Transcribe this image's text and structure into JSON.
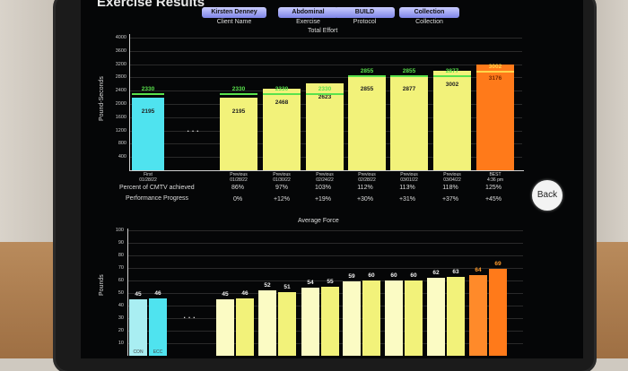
{
  "screen_title": "Exercise Results",
  "header": {
    "client_value": "Kirsten Denney",
    "client_caption": "Client Name",
    "exercise_value": "Abdominal",
    "exercise_caption": "Exercise",
    "protocol_value": "BUILD",
    "protocol_caption": "Protocol",
    "collection_value": "Collection",
    "collection_caption": "Collection"
  },
  "back_label": "Back",
  "ellipsis": "...",
  "colors": {
    "first": "#4fe3ef",
    "previous": "#f2f27a",
    "best": "#ff7a1a",
    "green_label": "#59e24c"
  },
  "chart_data": [
    {
      "type": "bar",
      "title": "Total Effort",
      "ylabel": "Pound-Seconds",
      "ylim": [
        0,
        4000
      ],
      "yticks": [
        400,
        800,
        1200,
        1600,
        2000,
        2400,
        2800,
        3200,
        3600,
        4000
      ],
      "categories": [
        {
          "line1": "First",
          "line2": "01/28/22"
        },
        {
          "line1": "Previous",
          "line2": "01/28/22"
        },
        {
          "line1": "Previous",
          "line2": "01/30/22"
        },
        {
          "line1": "Previous",
          "line2": "02/24/22"
        },
        {
          "line1": "Previous",
          "line2": "02/28/22"
        },
        {
          "line1": "Previous",
          "line2": "03/01/22"
        },
        {
          "line1": "Previous",
          "line2": "03/04/22"
        },
        {
          "line1": "BEST",
          "line2": "4:36 pm"
        }
      ],
      "values": [
        2195,
        2195,
        2468,
        2623,
        2855,
        2877,
        3002,
        3176
      ],
      "targets": [
        2330,
        2330,
        2330,
        2330,
        2855,
        2855,
        2877,
        3002
      ],
      "percent_label": "Percent of CMTV achieved",
      "percent": [
        "86%",
        "97%",
        "103%",
        "112%",
        "113%",
        "118%",
        "125%"
      ],
      "progress_label": "Performance Progress",
      "progress": [
        "0%",
        "+12%",
        "+19%",
        "+30%",
        "+31%",
        "+37%",
        "+45%"
      ]
    },
    {
      "type": "bar",
      "title": "Average Force",
      "ylabel": "Pounds",
      "ylim": [
        0,
        100
      ],
      "yticks": [
        10,
        20,
        30,
        40,
        50,
        60,
        70,
        80,
        90,
        100
      ],
      "groups": [
        {
          "con": 45,
          "ecc": 46
        },
        {
          "con": 45,
          "ecc": 46
        },
        {
          "con": 52,
          "ecc": 51
        },
        {
          "con": 54,
          "ecc": 55
        },
        {
          "con": 59,
          "ecc": 60
        },
        {
          "con": 60,
          "ecc": 60
        },
        {
          "con": 62,
          "ecc": 63
        },
        {
          "con": 64,
          "ecc": 69
        }
      ],
      "bar_labels": [
        "CON",
        "ECC"
      ]
    }
  ]
}
